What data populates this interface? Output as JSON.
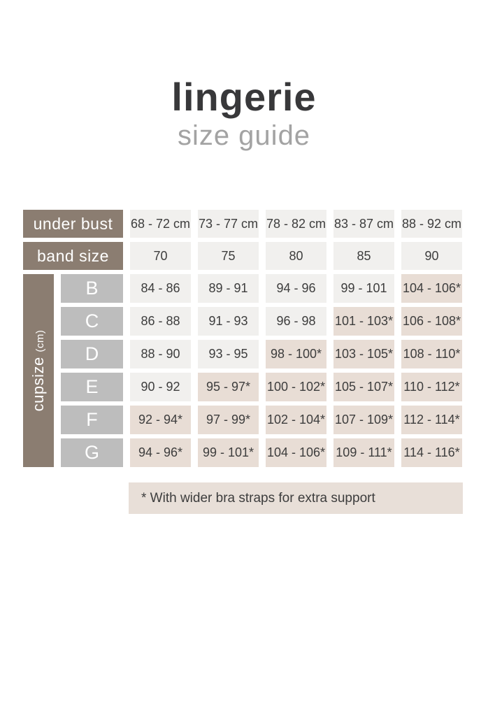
{
  "header": {
    "title": "lingerie",
    "subtitle": "size guide"
  },
  "chart_data": {
    "type": "table",
    "title": "lingerie size guide",
    "under_bust": {
      "label": "under bust",
      "values": [
        "68 - 72 cm",
        "73 - 77 cm",
        "78 - 82 cm",
        "83 - 87 cm",
        "88 - 92 cm"
      ]
    },
    "band_size": {
      "label": "band size",
      "values": [
        "70",
        "75",
        "80",
        "85",
        "90"
      ]
    },
    "cupsize": {
      "label": "cupsize",
      "unit": "(cm)"
    },
    "rows": [
      {
        "cup": "B",
        "values": [
          "84 - 86",
          "89 - 91",
          "94 - 96",
          "99 - 101",
          "104 - 106*"
        ]
      },
      {
        "cup": "C",
        "values": [
          "86 - 88",
          "91 - 93",
          "96 - 98",
          "101 - 103*",
          "106 - 108*"
        ]
      },
      {
        "cup": "D",
        "values": [
          "88 - 90",
          "93 - 95",
          "98 - 100*",
          "103 - 105*",
          "108 - 110*"
        ]
      },
      {
        "cup": "E",
        "values": [
          "90 - 92",
          "95 - 97*",
          "100 - 102*",
          "105 - 107*",
          "110 - 112*"
        ]
      },
      {
        "cup": "F",
        "values": [
          "92 - 94*",
          "97 - 99*",
          "102 - 104*",
          "107 - 109*",
          "112 - 114*"
        ]
      },
      {
        "cup": "G",
        "values": [
          "94 - 96*",
          "99 - 101*",
          "104 - 106*",
          "109 - 111*",
          "114 - 116*"
        ]
      }
    ],
    "footnote": "* With wider bra straps for extra support"
  },
  "colors": {
    "brown": "#8b7d71",
    "cup_letter_bg": "#bdbdbd",
    "cell_bg": "#f1f0ee",
    "highlight_bg": "#e8ddd5",
    "footnote_bg": "#e8dfd8",
    "text_dark": "#3d3d3d",
    "title_color": "#38383a",
    "subtitle_color": "#a3a3a3"
  }
}
